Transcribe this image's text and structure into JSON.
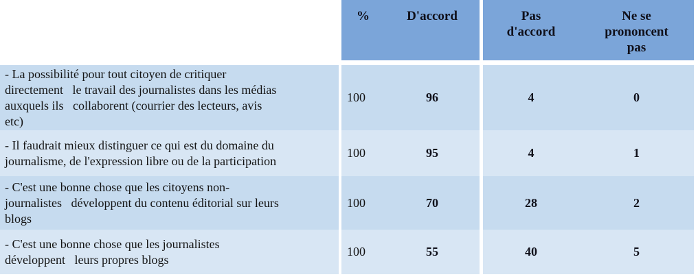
{
  "palette": {
    "header_bg": "#7BA5D9",
    "row_dark_bg": "#C6DBEF",
    "row_light_bg": "#D8E6F4",
    "separator": "#FFFFFF",
    "header_text": "#10101A",
    "body_text": "#141414"
  },
  "table": {
    "headers": {
      "percent": "%",
      "agree": "D'accord",
      "disagree": "Pas\nd'accord",
      "no_opinion": "Ne se\nprononcent\npas"
    },
    "rows": [
      {
        "label": "- La possibilité pour tout citoyen de critiquer\ndirectement   le travail des journalistes dans les médias\nauxquels ils   collaborent (courrier des lecteurs, avis\netc)",
        "percent": "100",
        "agree": "96",
        "disagree": "4",
        "no_opinion": "0"
      },
      {
        "label": "- Il faudrait mieux distinguer ce qui est du domaine du\njournalisme, de l'expression libre ou de la participation",
        "percent": "100",
        "agree": "95",
        "disagree": "4",
        "no_opinion": "1"
      },
      {
        "label": "- C'est une bonne chose que les citoyens non-\njournalistes   développent du contenu éditorial sur leurs\nblogs",
        "percent": "100",
        "agree": "70",
        "disagree": "28",
        "no_opinion": "2"
      },
      {
        "label": "- C'est une bonne chose que les journalistes\ndéveloppent   leurs propres blogs",
        "percent": "100",
        "agree": "55",
        "disagree": "40",
        "no_opinion": "5"
      }
    ]
  },
  "chart_data": {
    "type": "table",
    "columns": [
      "%",
      "D'accord",
      "Pas d'accord",
      "Ne se prononcent pas"
    ],
    "row_labels": [
      "La possibilité pour tout citoyen de critiquer directement le travail des journalistes dans les médias auxquels ils collaborent (courrier des lecteurs, avis etc)",
      "Il faudrait mieux distinguer ce qui est du domaine du journalisme, de l'expression libre ou de la participation",
      "C'est une bonne chose que les citoyens non-journalistes développent du contenu éditorial sur leurs blogs",
      "C'est une bonne chose que les journalistes développent leurs propres blogs"
    ],
    "values": [
      [
        100,
        96,
        4,
        0
      ],
      [
        100,
        95,
        4,
        1
      ],
      [
        100,
        70,
        28,
        2
      ],
      [
        100,
        55,
        40,
        5
      ]
    ]
  }
}
